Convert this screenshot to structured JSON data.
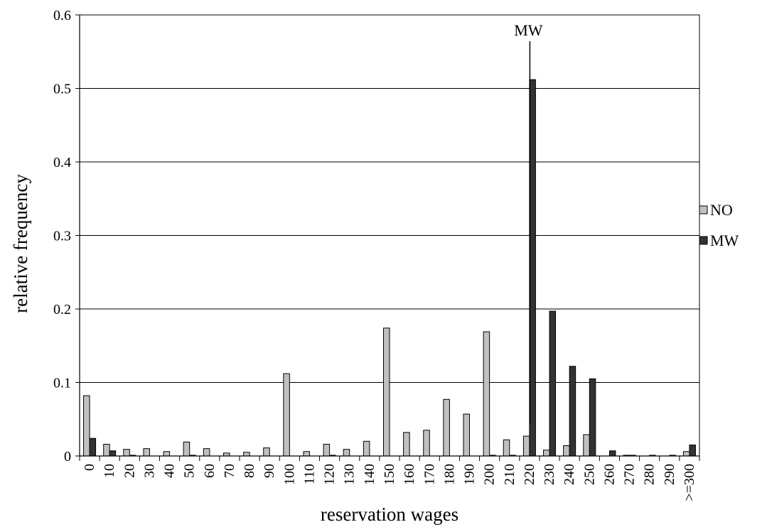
{
  "chart_data": {
    "type": "bar",
    "xlabel": "reservation wages",
    "ylabel": "relative frequency",
    "ylim": [
      0,
      0.6
    ],
    "yticks": [
      0,
      0.1,
      0.2,
      0.3,
      0.4,
      0.5,
      0.6
    ],
    "ytick_labels": [
      "0",
      "0.1",
      "0.2",
      "0.3",
      "0.4",
      "0.5",
      "0.6"
    ],
    "grid": "horizontal",
    "legend_position": "right",
    "categories": [
      "0",
      "10",
      "20",
      "30",
      "40",
      "50",
      "60",
      "70",
      "80",
      "90",
      "100",
      "110",
      "120",
      "130",
      "140",
      "150",
      "160",
      "170",
      "180",
      "190",
      "200",
      "210",
      "220",
      "230",
      "240",
      "250",
      "260",
      "270",
      "280",
      "290",
      ">=300"
    ],
    "series": [
      {
        "name": "NO",
        "color": "#c0c0c0",
        "values": [
          0.082,
          0.016,
          0.009,
          0.01,
          0.006,
          0.019,
          0.01,
          0.004,
          0.005,
          0.011,
          0.112,
          0.006,
          0.016,
          0.009,
          0.02,
          0.174,
          0.032,
          0.035,
          0.077,
          0.057,
          0.169,
          0.022,
          0.027,
          0.008,
          0.014,
          0.029,
          0.0,
          0.001,
          0.0,
          0.0,
          0.006
        ]
      },
      {
        "name": "MW",
        "color": "#333333",
        "values": [
          0.024,
          0.007,
          0.001,
          0.0,
          0.0,
          0.001,
          0.0,
          0.0,
          0.0,
          0.0,
          0.0,
          0.0,
          0.001,
          0.0,
          0.0,
          0.0,
          0.0,
          0.0,
          0.0,
          0.0,
          0.001,
          0.001,
          0.512,
          0.197,
          0.122,
          0.105,
          0.007,
          0.001,
          0.001,
          0.001,
          0.015
        ]
      }
    ],
    "annotation": {
      "text": "MW",
      "category": "220"
    }
  }
}
